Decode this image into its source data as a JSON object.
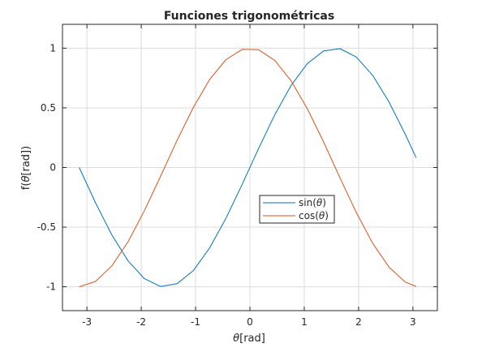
{
  "chart_data": {
    "type": "line",
    "title": "Funciones trigonométricas",
    "xlabel_symbol": "θ",
    "xlabel_unit": "[rad]",
    "ylabel_prefix": "f(",
    "ylabel_symbol": "θ",
    "ylabel_suffix": "[rad])",
    "xlim": [
      -3.45,
      3.45
    ],
    "ylim": [
      -1.2,
      1.2
    ],
    "grid": true,
    "x_ticks": [
      -3,
      -2,
      -1,
      0,
      1,
      2,
      3
    ],
    "x_tick_labels": [
      "-3",
      "-2",
      "-1",
      "0",
      "1",
      "2",
      "3"
    ],
    "y_ticks": [
      -1,
      -0.5,
      0,
      0.5,
      1
    ],
    "y_tick_labels": [
      "-1",
      "-0.5",
      "0",
      "0.5",
      "1"
    ],
    "x": [
      -3.1416,
      -2.8416,
      -2.5416,
      -2.2416,
      -1.9416,
      -1.6416,
      -1.3416,
      -1.0416,
      -0.7416,
      -0.4416,
      -0.1416,
      0.1584,
      0.4584,
      0.7584,
      1.0584,
      1.3584,
      1.6584,
      1.9584,
      2.2584,
      2.5584,
      2.8584,
      3.0584
    ],
    "series": [
      {
        "name_prefix": "sin(",
        "name_symbol": "θ",
        "name_suffix": ")",
        "color": "#0072BD",
        "values": [
          0.0,
          -0.296,
          -0.565,
          -0.783,
          -0.932,
          -0.998,
          -0.974,
          -0.864,
          -0.675,
          -0.427,
          -0.141,
          0.158,
          0.443,
          0.688,
          0.872,
          0.978,
          0.996,
          0.926,
          0.773,
          0.551,
          0.279,
          0.083
        ]
      },
      {
        "name_prefix": "cos(",
        "name_symbol": "θ",
        "name_suffix": ")",
        "color": "#D95319",
        "values": [
          -1.0,
          -0.955,
          -0.825,
          -0.622,
          -0.362,
          -0.071,
          0.227,
          0.504,
          0.737,
          0.904,
          0.99,
          0.987,
          0.897,
          0.726,
          0.49,
          0.211,
          -0.087,
          -0.377,
          -0.634,
          -0.834,
          -0.96,
          -0.997
        ]
      }
    ],
    "legend_location": "center-right"
  },
  "colors": {
    "axes_line": "#262626",
    "grid": "#dcdcdc",
    "background": "#ffffff"
  }
}
